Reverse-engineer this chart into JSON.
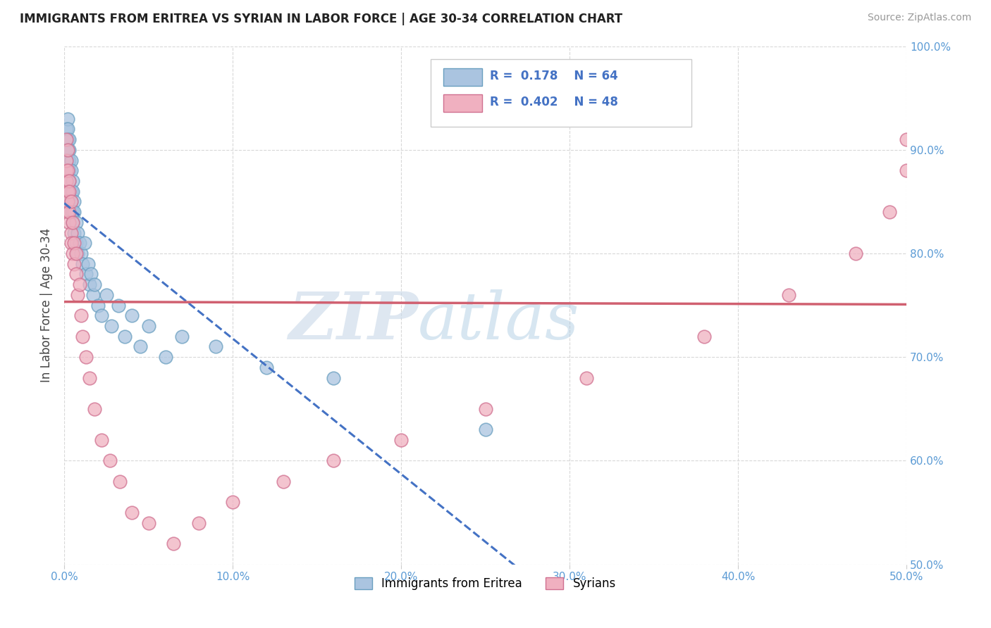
{
  "title": "IMMIGRANTS FROM ERITREA VS SYRIAN IN LABOR FORCE | AGE 30-34 CORRELATION CHART",
  "source": "Source: ZipAtlas.com",
  "ylabel": "In Labor Force | Age 30-34",
  "xlim": [
    0.0,
    0.5
  ],
  "ylim": [
    0.5,
    1.0
  ],
  "xtick_labels": [
    "0.0%",
    "10.0%",
    "20.0%",
    "30.0%",
    "40.0%",
    "50.0%"
  ],
  "ytick_labels": [
    "50.0%",
    "60.0%",
    "70.0%",
    "80.0%",
    "90.0%",
    "100.0%"
  ],
  "eritrea_color": "#aac4e0",
  "eritrea_edge": "#6a9fc0",
  "syrian_color": "#f0b0c0",
  "syrian_edge": "#d07090",
  "eritrea_line_color": "#4472c4",
  "syrian_line_color": "#d06070",
  "eritrea_R": 0.178,
  "eritrea_N": 64,
  "syrian_R": 0.402,
  "syrian_N": 48,
  "watermark": "ZIPatlas",
  "legend_label1": "Immigrants from Eritrea",
  "legend_label2": "Syrians",
  "eritrea_x": [
    0.001,
    0.001,
    0.001,
    0.001,
    0.001,
    0.002,
    0.002,
    0.002,
    0.002,
    0.002,
    0.002,
    0.002,
    0.002,
    0.002,
    0.002,
    0.003,
    0.003,
    0.003,
    0.003,
    0.003,
    0.003,
    0.003,
    0.003,
    0.004,
    0.004,
    0.004,
    0.004,
    0.004,
    0.005,
    0.005,
    0.005,
    0.005,
    0.006,
    0.006,
    0.006,
    0.007,
    0.007,
    0.008,
    0.008,
    0.009,
    0.01,
    0.011,
    0.012,
    0.013,
    0.014,
    0.015,
    0.016,
    0.017,
    0.018,
    0.02,
    0.022,
    0.025,
    0.028,
    0.032,
    0.036,
    0.04,
    0.045,
    0.05,
    0.06,
    0.07,
    0.09,
    0.12,
    0.16,
    0.25
  ],
  "eritrea_y": [
    0.88,
    0.9,
    0.92,
    0.91,
    0.89,
    0.93,
    0.91,
    0.9,
    0.89,
    0.88,
    0.87,
    0.86,
    0.9,
    0.92,
    0.88,
    0.91,
    0.89,
    0.87,
    0.86,
    0.85,
    0.88,
    0.9,
    0.87,
    0.89,
    0.88,
    0.86,
    0.85,
    0.84,
    0.87,
    0.86,
    0.84,
    0.83,
    0.85,
    0.84,
    0.82,
    0.83,
    0.81,
    0.82,
    0.8,
    0.81,
    0.8,
    0.79,
    0.81,
    0.78,
    0.79,
    0.77,
    0.78,
    0.76,
    0.77,
    0.75,
    0.74,
    0.76,
    0.73,
    0.75,
    0.72,
    0.74,
    0.71,
    0.73,
    0.7,
    0.72,
    0.71,
    0.69,
    0.68,
    0.63
  ],
  "syrian_x": [
    0.001,
    0.001,
    0.001,
    0.001,
    0.002,
    0.002,
    0.002,
    0.002,
    0.002,
    0.003,
    0.003,
    0.003,
    0.003,
    0.004,
    0.004,
    0.004,
    0.005,
    0.005,
    0.006,
    0.006,
    0.007,
    0.007,
    0.008,
    0.009,
    0.01,
    0.011,
    0.013,
    0.015,
    0.018,
    0.022,
    0.027,
    0.033,
    0.04,
    0.05,
    0.065,
    0.08,
    0.1,
    0.13,
    0.16,
    0.2,
    0.25,
    0.31,
    0.38,
    0.43,
    0.47,
    0.49,
    0.5,
    0.5
  ],
  "syrian_y": [
    0.88,
    0.91,
    0.87,
    0.89,
    0.86,
    0.9,
    0.84,
    0.88,
    0.85,
    0.87,
    0.83,
    0.86,
    0.84,
    0.82,
    0.85,
    0.81,
    0.83,
    0.8,
    0.81,
    0.79,
    0.78,
    0.8,
    0.76,
    0.77,
    0.74,
    0.72,
    0.7,
    0.68,
    0.65,
    0.62,
    0.6,
    0.58,
    0.55,
    0.54,
    0.52,
    0.54,
    0.56,
    0.58,
    0.6,
    0.62,
    0.65,
    0.68,
    0.72,
    0.76,
    0.8,
    0.84,
    0.88,
    0.91
  ]
}
